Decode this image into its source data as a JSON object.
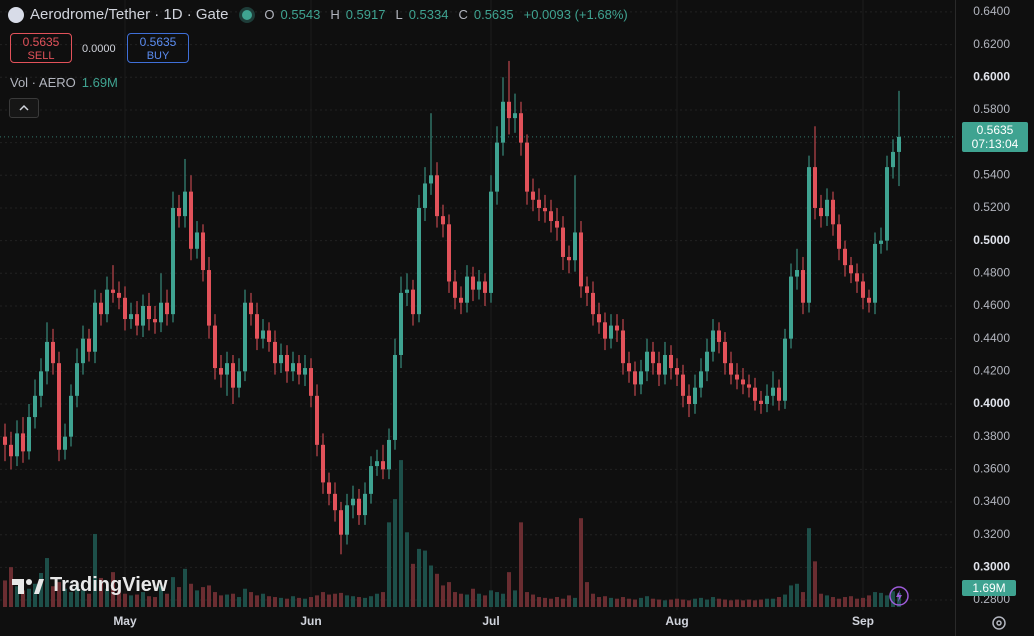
{
  "chart_data": {
    "type": "candlestick",
    "title": "Aerodrome/Tether · 1D · Gate",
    "ohlc_labels": [
      "O",
      "H",
      "L",
      "C"
    ],
    "change": "+0.0093 (+1.68%)",
    "countdown": "07:13:04",
    "brand": "TradingView",
    "trade": {
      "sell_price": "0.5635",
      "sell": "SELL",
      "spread": "0.0000",
      "buy_price": "0.5635",
      "buy": "BUY"
    },
    "colors": {
      "up": "#3fa391",
      "down": "#e2525a",
      "volume_up": "#1d4f49",
      "volume_down": "#6a2d31"
    },
    "grid": true,
    "xlim": [
      -0.833,
      158.333
    ],
    "xticks": [
      {
        "value": 20,
        "label": "May"
      },
      {
        "value": 51,
        "label": "Jun"
      },
      {
        "value": 81,
        "label": "Jul"
      },
      {
        "value": 112,
        "label": "Aug"
      },
      {
        "value": 143,
        "label": "Sep"
      }
    ],
    "ylim": [
      0.2739,
      0.6473
    ],
    "yticks": [
      {
        "value": 0.64,
        "label": "0.6400"
      },
      {
        "value": 0.62,
        "label": "0.6200"
      },
      {
        "value": 0.6,
        "label": "0.6000"
      },
      {
        "value": 0.58,
        "label": "0.5800"
      },
      {
        "value": 0.56,
        "label": "0.5600"
      },
      {
        "value": 0.54,
        "label": "0.5400"
      },
      {
        "value": 0.52,
        "label": "0.5200"
      },
      {
        "value": 0.5,
        "label": "0.5000"
      },
      {
        "value": 0.48,
        "label": "0.4800"
      },
      {
        "value": 0.46,
        "label": "0.4600"
      },
      {
        "value": 0.44,
        "label": "0.4400"
      },
      {
        "value": 0.42,
        "label": "0.4200"
      },
      {
        "value": 0.4,
        "label": "0.4000"
      },
      {
        "value": 0.38,
        "label": "0.3800"
      },
      {
        "value": 0.36,
        "label": "0.3600"
      },
      {
        "value": 0.34,
        "label": "0.3400"
      },
      {
        "value": 0.32,
        "label": "0.3200"
      },
      {
        "value": 0.3,
        "label": "0.3000"
      },
      {
        "value": 0.28,
        "label": "0.2800"
      }
    ],
    "series": {
      "open": [
        0.38,
        0.375,
        0.368,
        0.382,
        0.371,
        0.392,
        0.405,
        0.42,
        0.438,
        0.425,
        0.372,
        0.38,
        0.405,
        0.425,
        0.44,
        0.432,
        0.462,
        0.455,
        0.47,
        0.468,
        0.465,
        0.452,
        0.455,
        0.448,
        0.46,
        0.452,
        0.45,
        0.462,
        0.455,
        0.52,
        0.515,
        0.53,
        0.495,
        0.505,
        0.482,
        0.448,
        0.422,
        0.418,
        0.425,
        0.41,
        0.42,
        0.462,
        0.455,
        0.44,
        0.445,
        0.438,
        0.425,
        0.43,
        0.42,
        0.425,
        0.418,
        0.422,
        0.405,
        0.375,
        0.352,
        0.345,
        0.335,
        0.32,
        0.338,
        0.342,
        0.332,
        0.345,
        0.362,
        0.365,
        0.36,
        0.378,
        0.43,
        0.468,
        0.47,
        0.455,
        0.52,
        0.535,
        0.54,
        0.515,
        0.51,
        0.475,
        0.465,
        0.462,
        0.478,
        0.47,
        0.475,
        0.468,
        0.53,
        0.56,
        0.585,
        0.575,
        0.578,
        0.56,
        0.53,
        0.525,
        0.52,
        0.518,
        0.512,
        0.508,
        0.49,
        0.488,
        0.505,
        0.472,
        0.468,
        0.455,
        0.45,
        0.44,
        0.448,
        0.445,
        0.425,
        0.42,
        0.412,
        0.42,
        0.432,
        0.425,
        0.418,
        0.43,
        0.422,
        0.418,
        0.405,
        0.4,
        0.41,
        0.42,
        0.432,
        0.445,
        0.438,
        0.425,
        0.418,
        0.415,
        0.412,
        0.41,
        0.402,
        0.4,
        0.405,
        0.41,
        0.402,
        0.44,
        0.478,
        0.482,
        0.462,
        0.545,
        0.52,
        0.515,
        0.525,
        0.51,
        0.495,
        0.485,
        0.48,
        0.475,
        0.465,
        0.462,
        0.498,
        0.5,
        0.545,
        0.5543
      ],
      "high": [
        0.388,
        0.383,
        0.39,
        0.392,
        0.4,
        0.415,
        0.428,
        0.45,
        0.446,
        0.432,
        0.388,
        0.412,
        0.434,
        0.448,
        0.446,
        0.47,
        0.468,
        0.478,
        0.485,
        0.475,
        0.472,
        0.462,
        0.463,
        0.467,
        0.468,
        0.46,
        0.48,
        0.47,
        0.53,
        0.528,
        0.55,
        0.54,
        0.512,
        0.51,
        0.49,
        0.455,
        0.43,
        0.432,
        0.43,
        0.428,
        0.47,
        0.468,
        0.462,
        0.452,
        0.45,
        0.445,
        0.437,
        0.436,
        0.432,
        0.43,
        0.43,
        0.428,
        0.412,
        0.382,
        0.358,
        0.352,
        0.34,
        0.345,
        0.35,
        0.348,
        0.352,
        0.368,
        0.372,
        0.375,
        0.385,
        0.44,
        0.478,
        0.48,
        0.476,
        0.528,
        0.545,
        0.578,
        0.548,
        0.522,
        0.516,
        0.482,
        0.472,
        0.485,
        0.484,
        0.482,
        0.48,
        0.54,
        0.57,
        0.6,
        0.61,
        0.59,
        0.585,
        0.565,
        0.538,
        0.532,
        0.528,
        0.525,
        0.52,
        0.515,
        0.497,
        0.54,
        0.512,
        0.478,
        0.475,
        0.462,
        0.456,
        0.455,
        0.455,
        0.452,
        0.432,
        0.426,
        0.427,
        0.44,
        0.438,
        0.432,
        0.438,
        0.436,
        0.428,
        0.424,
        0.412,
        0.418,
        0.428,
        0.44,
        0.452,
        0.45,
        0.444,
        0.432,
        0.425,
        0.422,
        0.418,
        0.416,
        0.408,
        0.412,
        0.42,
        0.415,
        0.446,
        0.486,
        0.495,
        0.49,
        0.552,
        0.57,
        0.528,
        0.532,
        0.53,
        0.516,
        0.5,
        0.49,
        0.486,
        0.48,
        0.47,
        0.505,
        0.508,
        0.552,
        0.562,
        0.5917
      ],
      "low": [
        0.365,
        0.36,
        0.362,
        0.364,
        0.366,
        0.385,
        0.398,
        0.412,
        0.418,
        0.365,
        0.366,
        0.374,
        0.398,
        0.418,
        0.426,
        0.425,
        0.448,
        0.45,
        0.462,
        0.458,
        0.445,
        0.446,
        0.442,
        0.441,
        0.445,
        0.443,
        0.444,
        0.448,
        0.45,
        0.508,
        0.508,
        0.488,
        0.489,
        0.475,
        0.44,
        0.415,
        0.41,
        0.405,
        0.4,
        0.404,
        0.414,
        0.448,
        0.433,
        0.434,
        0.432,
        0.418,
        0.419,
        0.413,
        0.414,
        0.412,
        0.411,
        0.398,
        0.368,
        0.345,
        0.338,
        0.328,
        0.308,
        0.314,
        0.33,
        0.326,
        0.326,
        0.339,
        0.356,
        0.354,
        0.354,
        0.372,
        0.422,
        0.46,
        0.448,
        0.45,
        0.512,
        0.528,
        0.508,
        0.502,
        0.468,
        0.458,
        0.455,
        0.456,
        0.463,
        0.464,
        0.46,
        0.462,
        0.522,
        0.552,
        0.565,
        0.566,
        0.552,
        0.522,
        0.518,
        0.512,
        0.511,
        0.505,
        0.5,
        0.482,
        0.48,
        0.481,
        0.465,
        0.46,
        0.448,
        0.443,
        0.433,
        0.434,
        0.438,
        0.418,
        0.413,
        0.405,
        0.406,
        0.414,
        0.418,
        0.411,
        0.412,
        0.415,
        0.411,
        0.398,
        0.392,
        0.394,
        0.404,
        0.414,
        0.426,
        0.431,
        0.418,
        0.412,
        0.409,
        0.406,
        0.404,
        0.396,
        0.394,
        0.395,
        0.399,
        0.396,
        0.397,
        0.434,
        0.47,
        0.455,
        0.456,
        0.513,
        0.508,
        0.509,
        0.503,
        0.488,
        0.478,
        0.474,
        0.468,
        0.458,
        0.456,
        0.455,
        0.492,
        0.494,
        0.538,
        0.5334
      ],
      "close": [
        0.375,
        0.368,
        0.382,
        0.371,
        0.392,
        0.405,
        0.42,
        0.438,
        0.425,
        0.372,
        0.38,
        0.405,
        0.425,
        0.44,
        0.432,
        0.462,
        0.455,
        0.47,
        0.468,
        0.465,
        0.452,
        0.455,
        0.448,
        0.46,
        0.452,
        0.45,
        0.462,
        0.455,
        0.52,
        0.515,
        0.53,
        0.495,
        0.505,
        0.482,
        0.448,
        0.422,
        0.418,
        0.425,
        0.41,
        0.42,
        0.462,
        0.455,
        0.44,
        0.445,
        0.438,
        0.425,
        0.43,
        0.42,
        0.425,
        0.418,
        0.422,
        0.405,
        0.375,
        0.352,
        0.345,
        0.335,
        0.32,
        0.338,
        0.342,
        0.332,
        0.345,
        0.362,
        0.365,
        0.36,
        0.378,
        0.43,
        0.468,
        0.47,
        0.455,
        0.52,
        0.535,
        0.54,
        0.515,
        0.51,
        0.475,
        0.465,
        0.462,
        0.478,
        0.47,
        0.475,
        0.468,
        0.53,
        0.56,
        0.585,
        0.575,
        0.578,
        0.56,
        0.53,
        0.525,
        0.52,
        0.518,
        0.512,
        0.508,
        0.49,
        0.488,
        0.505,
        0.472,
        0.468,
        0.455,
        0.45,
        0.44,
        0.448,
        0.445,
        0.425,
        0.42,
        0.412,
        0.42,
        0.432,
        0.425,
        0.418,
        0.43,
        0.422,
        0.418,
        0.405,
        0.4,
        0.41,
        0.42,
        0.432,
        0.445,
        0.438,
        0.425,
        0.418,
        0.415,
        0.412,
        0.41,
        0.402,
        0.4,
        0.405,
        0.41,
        0.402,
        0.44,
        0.478,
        0.482,
        0.462,
        0.545,
        0.52,
        0.515,
        0.525,
        0.51,
        0.495,
        0.485,
        0.48,
        0.475,
        0.465,
        0.462,
        0.498,
        0.5,
        0.545,
        0.5543,
        0.5635
      ]
    },
    "volume": {
      "name": "Vol · AERO",
      "label": "1.69M",
      "ylim": [
        0,
        20
      ],
      "values": [
        3.2,
        4.8,
        2.5,
        2.0,
        2.2,
        2.8,
        4.1,
        5.9,
        2.5,
        3.0,
        2.2,
        1.8,
        2.4,
        2.0,
        1.6,
        8.8,
        3.5,
        2.2,
        4.2,
        2.0,
        1.6,
        1.4,
        1.5,
        1.8,
        1.3,
        1.2,
        2.5,
        1.6,
        3.6,
        2.4,
        4.6,
        2.8,
        2.0,
        2.4,
        2.6,
        1.8,
        1.4,
        1.5,
        1.6,
        1.2,
        2.2,
        1.8,
        1.4,
        1.6,
        1.3,
        1.2,
        1.1,
        1.0,
        1.3,
        1.1,
        1.0,
        1.2,
        1.4,
        1.8,
        1.5,
        1.6,
        1.7,
        1.4,
        1.3,
        1.2,
        1.1,
        1.3,
        1.6,
        1.8,
        10.2,
        13.0,
        17.7,
        9.0,
        5.2,
        7.0,
        6.8,
        5.0,
        4.0,
        2.6,
        3.0,
        1.8,
        1.6,
        1.5,
        2.2,
        1.6,
        1.4,
        2.0,
        1.8,
        1.6,
        4.2,
        2.0,
        10.2,
        1.8,
        1.5,
        1.2,
        1.1,
        1.0,
        1.2,
        1.0,
        1.4,
        1.1,
        10.7,
        3.0,
        1.6,
        1.2,
        1.3,
        1.1,
        1.0,
        1.2,
        1.0,
        0.9,
        1.1,
        1.3,
        1.0,
        0.9,
        0.8,
        0.9,
        1.0,
        0.9,
        0.8,
        1.0,
        1.1,
        0.9,
        1.2,
        1.0,
        0.9,
        0.8,
        0.9,
        0.8,
        0.9,
        0.8,
        0.9,
        1.0,
        1.0,
        1.2,
        1.5,
        2.6,
        2.8,
        1.8,
        9.5,
        5.5,
        1.6,
        1.4,
        1.2,
        1.0,
        1.2,
        1.3,
        1.0,
        1.1,
        1.4,
        1.8,
        1.7,
        1.4,
        1.9,
        1.69
      ]
    }
  }
}
